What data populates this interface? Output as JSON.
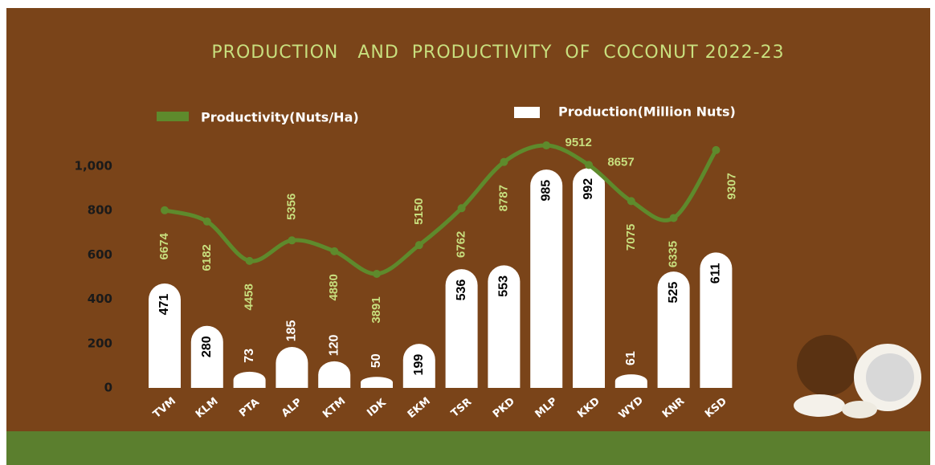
{
  "chart_data": {
    "type": "bar",
    "title": "PRODUCTION   AND  PRODUCTIVITY  OF  COCONUT 2022-23",
    "categories": [
      "TVM",
      "KLM",
      "PTA",
      "ALP",
      "KTM",
      "IDK",
      "EKM",
      "TSR",
      "PKD",
      "MLP",
      "KKD",
      "WYD",
      "KNR",
      "KSD"
    ],
    "series": [
      {
        "name": "Production(Million Nuts)",
        "type": "bar",
        "color": "#ffffff",
        "values": [
          471,
          280,
          73,
          185,
          120,
          50,
          199,
          536,
          553,
          985,
          992,
          61,
          525,
          611
        ]
      },
      {
        "name": "Productivity(Nuts/Ha)",
        "type": "line",
        "axis": "y2",
        "color": "#5e8a2c",
        "values": [
          6674,
          6182,
          4458,
          5356,
          4880,
          3891,
          5150,
          6762,
          8787,
          9512,
          8657,
          7075,
          6335,
          9307
        ]
      }
    ],
    "ylim": [
      0,
      1000
    ],
    "yticks": [
      0,
      200,
      400,
      600,
      800,
      {
        "value": 1000,
        "label": "1,000"
      }
    ],
    "y2lim": [
      -1100,
      8600
    ],
    "grid": false,
    "legend": "top"
  }
}
